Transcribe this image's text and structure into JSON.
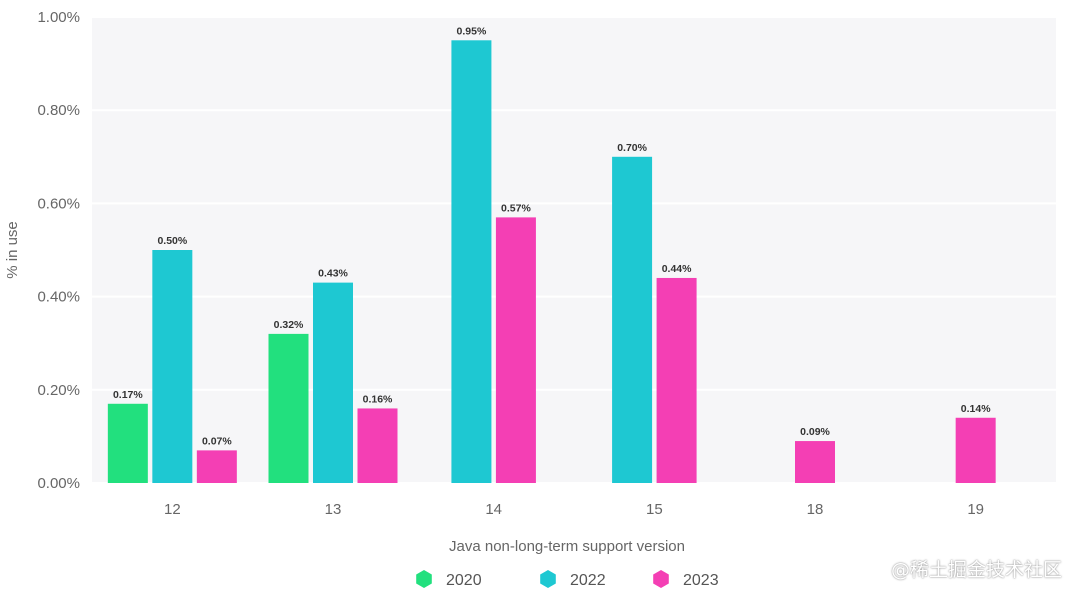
{
  "chart_data": {
    "type": "bar",
    "title": "",
    "xlabel": "Java non-long-term support version",
    "ylabel": "% in use",
    "categories": [
      "12",
      "13",
      "14",
      "15",
      "18",
      "19"
    ],
    "ylim": [
      0,
      1.0
    ],
    "yticks": [
      "0.00%",
      "0.20%",
      "0.40%",
      "0.60%",
      "0.80%",
      "1.00%"
    ],
    "grid": true,
    "legend_position": "bottom",
    "series": [
      {
        "name": "2020",
        "color": "#22e07e",
        "values": [
          0.17,
          0.32,
          null,
          null,
          null,
          null
        ],
        "labels": [
          "0.17%",
          "0.32%",
          null,
          null,
          null,
          null
        ]
      },
      {
        "name": "2022",
        "color": "#1ec8d2",
        "values": [
          0.5,
          0.43,
          0.95,
          0.7,
          null,
          null
        ],
        "labels": [
          "0.50%",
          "0.43%",
          "0.95%",
          "0.70%",
          null,
          null
        ]
      },
      {
        "name": "2023",
        "color": "#f43fb4",
        "values": [
          0.07,
          0.16,
          0.57,
          0.44,
          0.09,
          0.14
        ],
        "labels": [
          "0.07%",
          "0.16%",
          "0.57%",
          "0.44%",
          "0.09%",
          "0.14%"
        ]
      }
    ]
  },
  "watermark": "@稀土掘金技术社区"
}
